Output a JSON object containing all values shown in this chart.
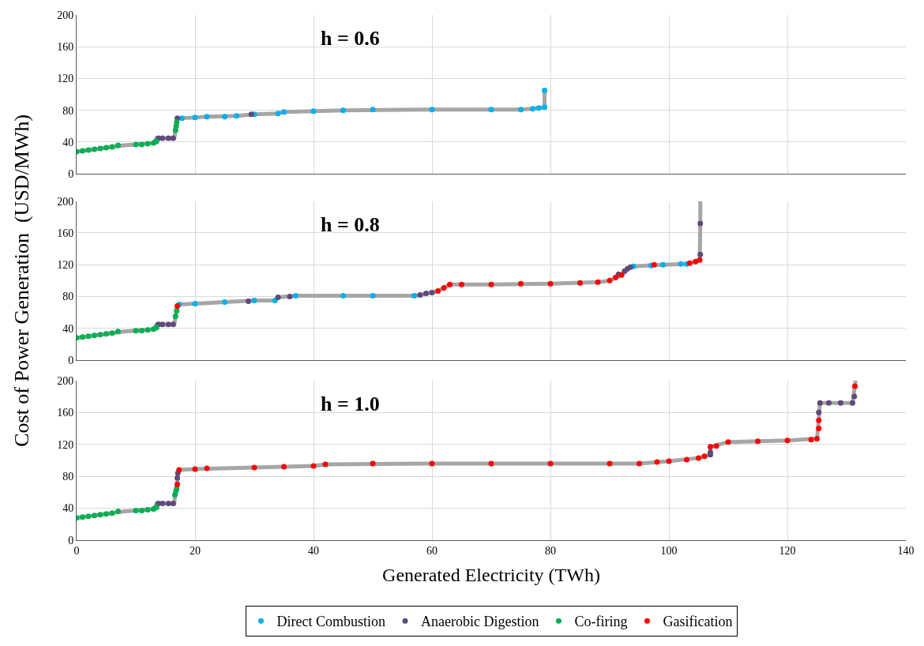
{
  "chart_data": [
    {
      "type": "scatter",
      "title": "h = 0.6",
      "xlim": [
        0,
        140
      ],
      "xticks": [
        0,
        20,
        40,
        60,
        80,
        100,
        120,
        140
      ],
      "ylim": [
        0,
        200
      ],
      "yticks": [
        0,
        40,
        80,
        120,
        160,
        200
      ],
      "tick_labels": "y",
      "grid": true,
      "marker": "circle",
      "legend": "bottom",
      "series": [
        {
          "type": "line",
          "marker": "none",
          "color": "#a6a6a6",
          "x": [
            0,
            7,
            8,
            10,
            13,
            13.5,
            16.5,
            16.7,
            17,
            17.2,
            20,
            22,
            27,
            30,
            34,
            35,
            40,
            45,
            60,
            75,
            77,
            79,
            79
          ],
          "values": [
            28,
            35,
            36,
            37,
            39,
            45,
            45,
            55,
            70,
            70,
            71,
            72,
            73,
            75,
            76,
            78,
            79,
            80,
            81,
            81,
            82,
            84,
            105
          ]
        },
        {
          "name": "Direct Combustion",
          "color": "#00b0f0",
          "x": [
            17.8,
            20,
            22,
            25,
            27,
            30,
            34,
            35,
            40,
            45,
            50,
            60,
            70,
            75,
            77,
            78,
            79,
            79
          ],
          "values": [
            70,
            71,
            72,
            72,
            73,
            75,
            76,
            78,
            79,
            80,
            81,
            81,
            81,
            81,
            82,
            83,
            84,
            105
          ]
        },
        {
          "name": "Anaerobic Digestion",
          "color": "#604a7b",
          "x": [
            13.8,
            14.5,
            15.5,
            16.3,
            17,
            29.5
          ],
          "values": [
            45,
            45,
            45,
            45,
            70,
            75
          ]
        },
        {
          "name": "Co-firing",
          "color": "#00b050",
          "x": [
            0,
            1,
            2,
            3,
            4,
            5,
            6,
            7,
            10,
            11,
            12,
            13,
            13.5,
            16.7,
            16.8,
            16.9
          ],
          "values": [
            28,
            29,
            30,
            31,
            32,
            33,
            34,
            36,
            37,
            37,
            38,
            39,
            41,
            55,
            60,
            65
          ]
        }
      ]
    },
    {
      "type": "scatter",
      "title": "h = 0.8",
      "ylabel": "Cost of Power Generation  (USD/MWh)",
      "xlim": [
        0,
        140
      ],
      "xticks": [
        0,
        20,
        40,
        60,
        80,
        100,
        120,
        140
      ],
      "ylim": [
        0,
        200
      ],
      "yticks": [
        0,
        40,
        80,
        120,
        160,
        200
      ],
      "tick_labels": "y",
      "grid": true,
      "marker": "circle",
      "legend": "bottom",
      "series": [
        {
          "type": "line",
          "marker": "none",
          "color": "#a6a6a6",
          "x": [
            0,
            7,
            8,
            10,
            13,
            13.5,
            16.5,
            16.7,
            17,
            17.3,
            20,
            25,
            30,
            33.5,
            34,
            37,
            45,
            57,
            58,
            60,
            61,
            63,
            70,
            80,
            88,
            90,
            92,
            93.5,
            94,
            99,
            103,
            104.5,
            105.2,
            105.3,
            105.3
          ],
          "values": [
            28,
            35,
            36,
            37,
            39,
            45,
            45,
            55,
            68,
            70,
            71,
            73,
            75,
            75,
            79,
            81,
            81,
            81,
            82,
            85,
            87,
            95,
            95,
            96,
            98,
            100,
            107,
            117,
            118,
            120,
            121,
            124,
            126,
            172,
            200
          ]
        },
        {
          "name": "Direct Combustion",
          "color": "#00b0f0",
          "x": [
            17.3,
            20,
            25,
            30,
            33.5,
            37,
            45,
            50,
            57,
            94,
            97,
            99,
            102,
            103
          ],
          "values": [
            70,
            71,
            73,
            75,
            75,
            81,
            81,
            81,
            81,
            118,
            119,
            120,
            121,
            121
          ]
        },
        {
          "name": "Anaerobic Digestion",
          "color": "#604a7b",
          "x": [
            13.8,
            14.5,
            15.5,
            16.3,
            29,
            34,
            36,
            58,
            59,
            60,
            91.5,
            92.5,
            93,
            93.5,
            105.3,
            105.3
          ],
          "values": [
            45,
            45,
            45,
            45,
            74,
            79,
            80,
            82,
            84,
            85,
            108,
            112,
            115,
            117,
            133,
            172
          ]
        },
        {
          "name": "Co-firing",
          "color": "#00b050",
          "x": [
            0,
            1,
            2,
            3,
            4,
            5,
            6,
            7,
            10,
            11,
            12,
            13,
            13.5,
            16.7,
            16.9
          ],
          "values": [
            28,
            29,
            30,
            31,
            32,
            33,
            34,
            36,
            37,
            37,
            38,
            39,
            41,
            55,
            62
          ]
        },
        {
          "name": "Gasification",
          "color": "#ff0000",
          "x": [
            17,
            61,
            62,
            63,
            65,
            70,
            75,
            80,
            85,
            88,
            90,
            91,
            92,
            97.5,
            103.5,
            104.5,
            105.2
          ],
          "values": [
            68,
            87,
            91,
            95,
            95,
            95,
            96,
            96,
            97,
            98,
            100,
            104,
            107,
            120,
            122,
            124,
            126
          ]
        }
      ]
    },
    {
      "type": "scatter",
      "title": "h = 1.0",
      "xlabel": "Generated Electricity (TWh)",
      "xlim": [
        0,
        140
      ],
      "xticks": [
        0,
        20,
        40,
        60,
        80,
        100,
        120,
        140
      ],
      "ylim": [
        0,
        200
      ],
      "yticks": [
        0,
        40,
        80,
        120,
        160,
        200
      ],
      "grid": true,
      "marker": "circle",
      "legend": "bottom",
      "series": [
        {
          "type": "line",
          "marker": "none",
          "color": "#a6a6a6",
          "x": [
            0,
            7,
            8,
            10,
            13,
            13.5,
            16.5,
            16.6,
            17,
            17.1,
            17.3,
            20,
            30,
            40,
            42,
            60,
            95,
            100,
            105,
            106,
            107,
            107,
            110,
            120,
            125,
            125.3,
            125.5,
            131,
            131.4,
            131.5
          ],
          "values": [
            28,
            35,
            36,
            37,
            39,
            46,
            46,
            57,
            70,
            84,
            88,
            89,
            91,
            93,
            95,
            96,
            96,
            99,
            103,
            105,
            107,
            117,
            123,
            125,
            127,
            150,
            172,
            172,
            193,
            200
          ]
        },
        {
          "name": "Anaerobic Digestion",
          "color": "#604a7b",
          "x": [
            13.8,
            14.5,
            15.5,
            16.3,
            17,
            17.1,
            107,
            107,
            125.3,
            125.5,
            127,
            129,
            131,
            131.3
          ],
          "values": [
            46,
            46,
            46,
            46,
            78,
            84,
            107,
            110,
            160,
            172,
            172,
            172,
            172,
            180
          ]
        },
        {
          "name": "Co-firing",
          "color": "#00b050",
          "x": [
            0,
            1,
            2,
            3,
            4,
            5,
            6,
            7,
            10,
            11,
            12,
            13,
            13.5,
            16.6,
            16.8,
            16.9
          ],
          "values": [
            28,
            29,
            30,
            31,
            32,
            33,
            34,
            36,
            37,
            37,
            38,
            39,
            41,
            57,
            62,
            65
          ]
        },
        {
          "name": "Gasification",
          "color": "#ff0000",
          "x": [
            17,
            17.3,
            20,
            22,
            30,
            35,
            40,
            42,
            50,
            60,
            70,
            80,
            90,
            95,
            98,
            100,
            103,
            105,
            106,
            107,
            108,
            110,
            115,
            120,
            124,
            125,
            125.3,
            125.3,
            131.4
          ],
          "values": [
            70,
            88,
            89,
            90,
            91,
            92,
            93,
            95,
            96,
            96,
            96,
            96,
            96,
            96,
            98,
            99,
            101,
            103,
            105,
            117,
            118,
            123,
            124,
            125,
            126,
            127,
            140,
            150,
            193
          ]
        }
      ]
    }
  ]
}
